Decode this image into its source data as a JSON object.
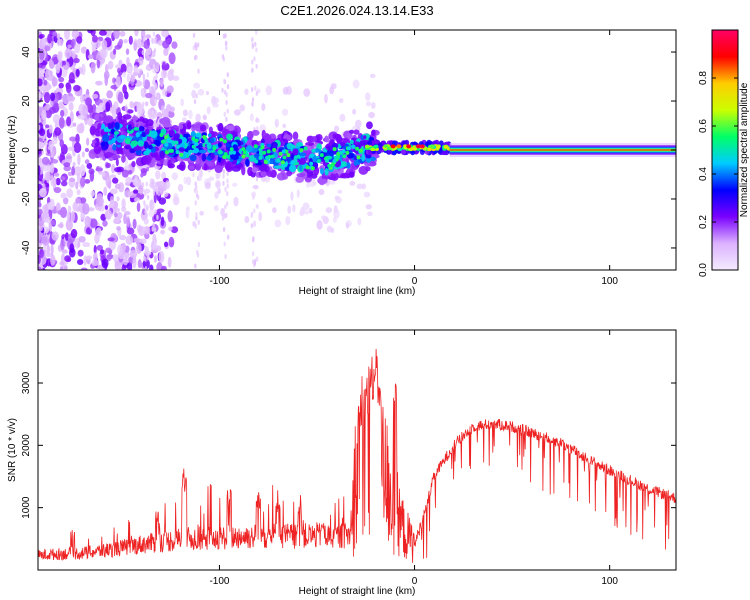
{
  "title": "C2E1.2026.024.13.14.E33",
  "chart_data": [
    {
      "type": "heatmap",
      "xlabel": "Height of straight line (km)",
      "ylabel": "Frequency (Hz)",
      "xlim": [
        -193,
        134
      ],
      "ylim": [
        -49,
        49
      ],
      "xticks": [
        -100,
        0,
        100
      ],
      "yticks": [
        -40,
        -20,
        0,
        20,
        40
      ],
      "colorbar": {
        "label": "Normalized spectral amplitude",
        "range": [
          0,
          1
        ],
        "ticks": [
          0.0,
          0.2,
          0.4,
          0.6,
          0.8
        ],
        "stops": [
          "#f4ecff",
          "#dcb2ff",
          "#7a00ff",
          "#0000ff",
          "#00ccff",
          "#00ff66",
          "#ccff00",
          "#ffcc00",
          "#ff0000",
          "#ff0066"
        ]
      },
      "description_points": {
        "track_center_hz": [
          [
            -160,
            6
          ],
          [
            -140,
            4
          ],
          [
            -120,
            2
          ],
          [
            -100,
            1
          ],
          [
            -80,
            -1
          ],
          [
            -60,
            -3
          ],
          [
            -45,
            -4
          ],
          [
            -35,
            -2
          ],
          [
            -25,
            1
          ],
          [
            -10,
            2
          ],
          [
            0,
            2
          ],
          [
            10,
            1
          ],
          [
            20,
            0
          ],
          [
            60,
            0
          ],
          [
            100,
            0
          ],
          [
            134,
            0
          ]
        ],
        "strong_band_start_km": 18
      }
    },
    {
      "type": "line",
      "xlabel": "Height of straight line (km)",
      "ylabel": "SNR (10 * v/v)",
      "xlim": [
        -193,
        134
      ],
      "ylim": [
        0,
        3850
      ],
      "xticks": [
        -100,
        0,
        100
      ],
      "yticks": [
        1000,
        2000,
        3000
      ],
      "color": "#ee2222",
      "series": [
        {
          "name": "SNR",
          "x": [
            -193,
            -180,
            -170,
            -160,
            -150,
            -140,
            -130,
            -120,
            -110,
            -100,
            -90,
            -80,
            -70,
            -60,
            -50,
            -40,
            -33,
            -30,
            -25,
            -22,
            -20,
            -15,
            -10,
            -5,
            0,
            5,
            10,
            20,
            30,
            40,
            50,
            60,
            70,
            80,
            90,
            100,
            110,
            120,
            134
          ],
          "y": [
            200,
            220,
            230,
            260,
            300,
            350,
            380,
            420,
            430,
            440,
            450,
            460,
            470,
            460,
            470,
            450,
            480,
            1600,
            1900,
            2100,
            1800,
            1500,
            1000,
            600,
            400,
            900,
            1500,
            2000,
            2300,
            2350,
            2300,
            2200,
            2100,
            1950,
            1750,
            1600,
            1450,
            1300,
            1150
          ]
        }
      ]
    }
  ]
}
